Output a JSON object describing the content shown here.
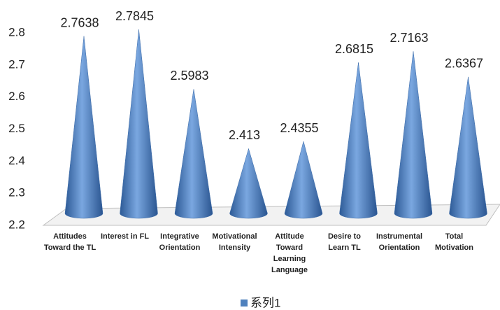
{
  "chart_data": {
    "type": "cone",
    "categories": [
      "Attitudes Toward the TL",
      "Interest in FL",
      "Integrative Orientation",
      "Motivational Intensity",
      "Attitude Toward Learning Language",
      "Desire to Learn TL",
      "Instrumental Orientation",
      "Total Motivation"
    ],
    "series": [
      {
        "name": "系列1",
        "color": "#4f81bd",
        "values": [
          2.7638,
          2.7845,
          2.5983,
          2.413,
          2.4355,
          2.6815,
          2.7163,
          2.6367
        ]
      }
    ],
    "ylim": [
      2.2,
      2.8
    ],
    "yticks": [
      2.2,
      2.3,
      2.4,
      2.5,
      2.6,
      2.7,
      2.8
    ],
    "legend": "bottom",
    "data_labels": true
  }
}
